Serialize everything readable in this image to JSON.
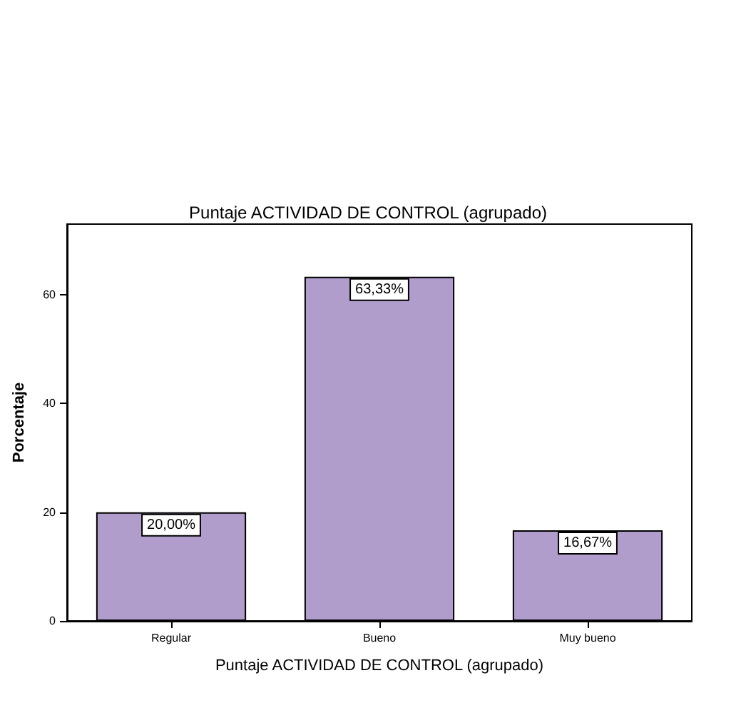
{
  "chart_data": {
    "type": "bar",
    "title": "Puntaje ACTIVIDAD DE CONTROL (agrupado)",
    "xlabel": "Puntaje ACTIVIDAD DE CONTROL (agrupado)",
    "ylabel": "Porcentaje",
    "categories": [
      "Regular",
      "Bueno",
      "Muy bueno"
    ],
    "values": [
      20,
      63.33,
      16.67
    ],
    "value_labels": [
      "20,00%",
      "63,33%",
      "16,67%"
    ],
    "color": "#b19dcb",
    "ylim": [
      0,
      73
    ],
    "yticks": [
      0,
      20,
      40,
      60
    ],
    "grid": false
  }
}
